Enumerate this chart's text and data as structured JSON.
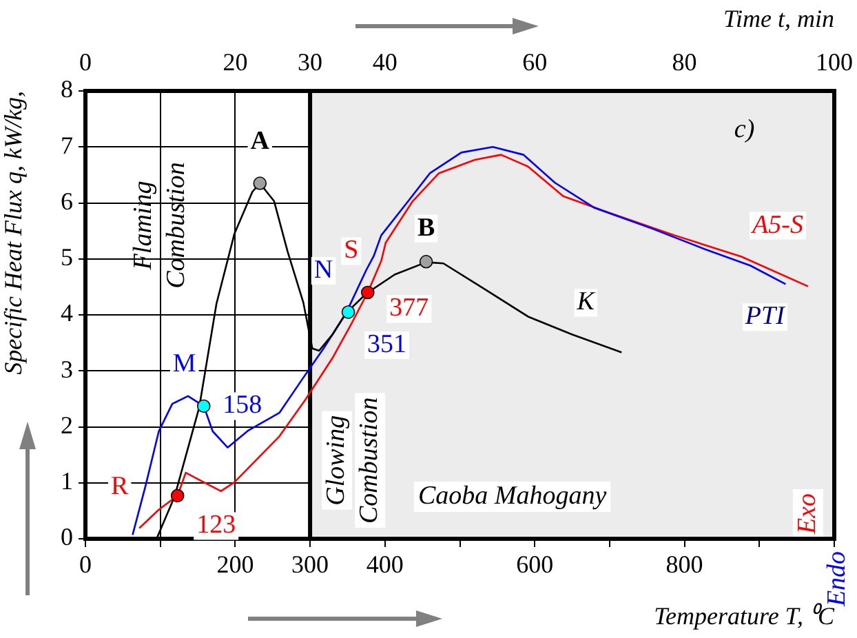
{
  "chart_data": {
    "type": "line",
    "xlabel": "Temperature T, ⁰C",
    "x2label": "Time t, min",
    "ylabel": "Specific Heat Flux q, kW/kg,",
    "xlim": [
      0,
      1000
    ],
    "xticks": [
      0,
      {
        "value": 100,
        "label": null
      },
      200,
      300,
      400,
      {
        "value": 500,
        "label": null
      },
      600,
      {
        "value": 700,
        "label": null
      },
      800,
      {
        "value": 900,
        "label": null
      },
      {
        "value": 1000,
        "label": null
      }
    ],
    "x2lim": [
      0,
      100
    ],
    "x2ticks": [
      0,
      {
        "value": 10,
        "label": null
      },
      20,
      30,
      40,
      {
        "value": 50,
        "label": null
      },
      60,
      {
        "value": 70,
        "label": null
      },
      80,
      {
        "value": 90,
        "label": null
      },
      100
    ],
    "ylim": [
      0,
      8
    ],
    "yticks": [
      0,
      1,
      2,
      3,
      4,
      5,
      6,
      7,
      8
    ],
    "grid": true,
    "series": [
      {
        "name": "K",
        "color": "#000000",
        "x": [
          95,
          119,
          152,
          175,
          199,
          223,
          233,
          252,
          270,
          291,
          303,
          312,
          330,
          348,
          375,
          413,
          455,
          478,
          532,
          591,
          650,
          716
        ],
        "values": [
          0,
          0.75,
          2.35,
          4.2,
          5.45,
          6.2,
          6.35,
          6.03,
          5.13,
          4.22,
          3.4,
          3.36,
          3.65,
          4.03,
          4.38,
          4.72,
          4.94,
          4.92,
          4.47,
          3.97,
          3.65,
          3.33
        ]
      },
      {
        "name": "PTI",
        "color": "#0000ff",
        "x": [
          63,
          80,
          98,
          116,
          137,
          158,
          170,
          190,
          217,
          259,
          288,
          318,
          348,
          375,
          385,
          395,
          431,
          460,
          502,
          544,
          585,
          627,
          680,
          757,
          828,
          888,
          935
        ],
        "values": [
          0.07,
          0.93,
          1.92,
          2.41,
          2.55,
          2.37,
          1.92,
          1.63,
          1.93,
          2.25,
          2.82,
          3.4,
          4.03,
          4.8,
          5.05,
          5.42,
          6.03,
          6.53,
          6.9,
          7.0,
          6.86,
          6.36,
          5.91,
          5.54,
          5.17,
          4.88,
          4.55
        ]
      },
      {
        "name": "A5-S",
        "color": "#ff0000",
        "x": [
          72,
          98,
          123,
          134,
          158,
          181,
          199,
          229,
          259,
          294,
          330,
          354,
          377,
          395,
          401,
          437,
          472,
          520,
          555,
          591,
          638,
          698,
          787,
          876,
          965
        ],
        "values": [
          0.19,
          0.52,
          0.77,
          1.18,
          1.01,
          0.85,
          1.01,
          1.42,
          1.83,
          2.49,
          3.23,
          3.81,
          4.4,
          4.96,
          5.29,
          6.03,
          6.53,
          6.77,
          6.86,
          6.65,
          6.12,
          5.83,
          5.42,
          5.04,
          4.51
        ]
      },
      {
        "type": "scatter",
        "marker": "circle",
        "x": [
          123,
          158,
          351,
          377,
          233,
          455
        ],
        "values": [
          0.77,
          2.37,
          4.05,
          4.4,
          6.35,
          4.95
        ],
        "colors": [
          "#ff0000",
          "#00ffff",
          "#00ffff",
          "#ff0000",
          "#a0a0a0",
          "#a0a0a0"
        ]
      }
    ],
    "ref_lines": [
      {
        "axis": "x",
        "value": 300,
        "color": "#000000"
      }
    ],
    "bands": [
      {
        "axis": "x",
        "from": 300,
        "to": 1000,
        "color": "#ececec"
      }
    ],
    "annotations": [
      "Flaming Combustion",
      "Glowing Combustion",
      "Caoba Mahogany",
      "c)",
      "Exo",
      "Endo",
      {
        "text": "A",
        "x": 233,
        "y": 6.35
      },
      {
        "text": "B",
        "x": 455,
        "y": 4.95
      },
      {
        "text": "M",
        "x": 158,
        "y": 2.37
      },
      {
        "text": "N",
        "x": 351,
        "y": 4.05
      },
      {
        "text": "R",
        "x": 123,
        "y": 0.77
      },
      {
        "text": "S",
        "x": 377,
        "y": 4.4
      },
      {
        "text": "158",
        "x": 158,
        "y": 2.37
      },
      {
        "text": "123",
        "x": 123,
        "y": 0.77
      },
      {
        "text": "351",
        "x": 351,
        "y": 4.05
      },
      {
        "text": "377",
        "x": 377,
        "y": 4.4
      }
    ]
  }
}
